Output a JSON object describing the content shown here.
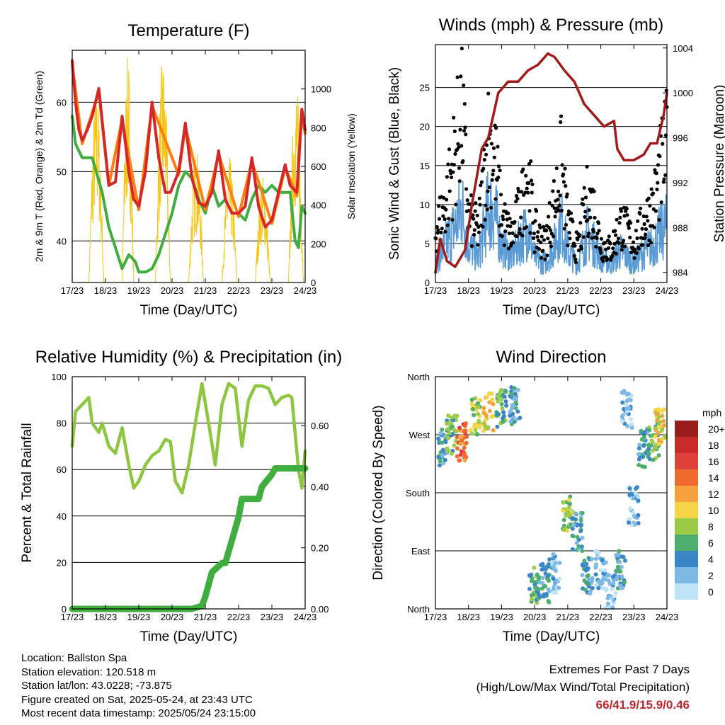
{
  "chart_data": [
    {
      "type": "line",
      "title": "Temperature (F)",
      "xlabel": "Time (Day/UTC)",
      "ylabel": "2m & 9m T (Red, Orange) & 2m Td (Green)",
      "y2label": "Solar Insolation (Yellow)",
      "x_ticks": [
        "17/23",
        "18/23",
        "19/23",
        "20/23",
        "21/23",
        "22/23",
        "23/23",
        "24/23"
      ],
      "y_ticks": [
        40,
        50,
        60
      ],
      "y2_ticks": [
        0,
        200,
        400,
        600,
        800,
        1000
      ],
      "ylim": [
        34,
        67.5
      ],
      "y2lim": [
        0,
        1200
      ],
      "grid": "horizontal",
      "x_unit": "days since 17/23",
      "series": [
        {
          "name": "2m T",
          "color": "#d62728",
          "x": [
            0.0,
            0.1,
            0.2,
            0.3,
            0.45,
            0.6,
            0.8,
            0.95,
            1.1,
            1.3,
            1.5,
            1.7,
            1.85,
            2.0,
            2.2,
            2.4,
            2.6,
            2.8,
            2.95,
            3.2,
            3.4,
            3.6,
            3.8,
            4.0,
            4.2,
            4.4,
            4.6,
            4.8,
            5.0,
            5.2,
            5.4,
            5.6,
            5.8,
            6.0,
            6.2,
            6.4,
            6.55,
            6.75,
            6.9,
            7.0
          ],
          "values": [
            66,
            60,
            56,
            54.5,
            56,
            58,
            62,
            55,
            48,
            48.5,
            58,
            50,
            46,
            45,
            50,
            60,
            52,
            47,
            47,
            50,
            57,
            49,
            45.5,
            45,
            47,
            53,
            46,
            44,
            44,
            45,
            52,
            45,
            42,
            43,
            47,
            51,
            48,
            47,
            59,
            56
          ]
        },
        {
          "name": "9m T",
          "color": "#ff7f0e",
          "x": [
            0.0,
            0.3,
            0.8,
            1.1,
            1.5,
            2.0,
            2.4,
            3.2,
            3.4,
            4.0,
            4.4,
            5.0,
            5.4,
            6.0,
            6.4,
            6.75,
            6.9,
            7.0
          ],
          "values": [
            65.5,
            54,
            61.5,
            48,
            57.5,
            44.5,
            59.5,
            49.5,
            56.5,
            44.5,
            52.5,
            43.5,
            51.5,
            42.5,
            50.5,
            46.5,
            58.5,
            55.5
          ]
        },
        {
          "name": "2m Td",
          "color": "#3fae3f",
          "x": [
            0.0,
            0.1,
            0.3,
            0.6,
            0.9,
            1.1,
            1.3,
            1.5,
            1.7,
            1.9,
            2.0,
            2.2,
            2.4,
            2.6,
            2.8,
            3.0,
            3.2,
            3.4,
            3.6,
            3.8,
            4.0,
            4.2,
            4.4,
            4.6,
            4.8,
            5.0,
            5.2,
            5.4,
            5.6,
            5.8,
            6.0,
            6.2,
            6.4,
            6.55,
            6.7,
            6.8,
            6.9,
            7.0
          ],
          "values": [
            58,
            54,
            52,
            52,
            47,
            42,
            39,
            36,
            38,
            37,
            35.5,
            35.5,
            36,
            38,
            41,
            44,
            48,
            50,
            49,
            46,
            44,
            48,
            45,
            46,
            44,
            44,
            43,
            46,
            48,
            47,
            48,
            47,
            47,
            47,
            40,
            39,
            45,
            44
          ]
        },
        {
          "name": "Solar Insolation",
          "axis": "y2",
          "color": "#f5c518",
          "x": [
            0.5,
            0.8,
            0.95,
            1.5,
            1.7,
            1.85,
            2.5,
            2.8,
            2.95,
            3.5,
            3.8,
            3.95,
            4.5,
            4.8,
            4.95,
            5.5,
            5.8,
            5.95,
            6.5,
            6.75,
            6.95
          ],
          "values": [
            0,
            1020,
            0,
            0,
            1180,
            0,
            0,
            1180,
            0,
            0,
            700,
            0,
            0,
            650,
            0,
            0,
            560,
            0,
            0,
            1050,
            0
          ]
        }
      ]
    },
    {
      "type": "scatter",
      "title": "Winds (mph) & Pressure (mb)",
      "xlabel": "Time (Day/UTC)",
      "ylabel": "Sonic Wind & Gust (Blue, Black)",
      "y2label": "Station Pressure (Maroon)",
      "x_ticks": [
        "17/23",
        "18/23",
        "19/23",
        "20/23",
        "21/23",
        "22/23",
        "23/23",
        "24/23"
      ],
      "y_ticks": [
        0,
        5,
        10,
        15,
        20,
        25
      ],
      "y2_ticks": [
        984,
        988,
        992,
        996,
        1000,
        1004
      ],
      "ylim": [
        0,
        30.5
      ],
      "y2lim": [
        983.1,
        1004.3
      ],
      "grid": "horizontal",
      "x_unit": "days since 17/23",
      "series": [
        {
          "name": "Sonic Wind",
          "color": "#5b9bd5",
          "x": [
            0.0,
            0.3,
            0.6,
            0.8,
            1.0,
            1.3,
            1.6,
            1.8,
            2.0,
            2.3,
            2.6,
            2.8,
            3.0,
            3.3,
            3.6,
            3.8,
            4.0,
            4.3,
            4.6,
            4.8,
            5.0,
            5.3,
            5.6,
            5.8,
            6.0,
            6.3,
            6.6,
            6.8,
            7.0
          ],
          "values": [
            3,
            6,
            9,
            12,
            6,
            4,
            12,
            11,
            6,
            4,
            7,
            9,
            4,
            3,
            6,
            10,
            5,
            3,
            8,
            6,
            4,
            3,
            5,
            4,
            3,
            5,
            6,
            8,
            9
          ]
        },
        {
          "name": "Gust",
          "color": "#000000",
          "x": [
            0.0,
            0.3,
            0.6,
            0.8,
            1.0,
            1.3,
            1.6,
            1.8,
            2.0,
            2.3,
            2.6,
            2.8,
            3.0,
            3.3,
            3.6,
            3.8,
            4.0,
            4.3,
            4.6,
            4.8,
            5.0,
            5.3,
            5.6,
            5.8,
            6.0,
            6.3,
            6.6,
            6.8,
            7.0
          ],
          "values": [
            8,
            12,
            20,
            27,
            10,
            8,
            22,
            19,
            10,
            7,
            12,
            17,
            8,
            6,
            12,
            18,
            9,
            5,
            13,
            11,
            6,
            5,
            9,
            8,
            6,
            9,
            12,
            17,
            21
          ]
        },
        {
          "name": "Station Pressure",
          "axis": "y2",
          "color": "#a31a1a",
          "x": [
            0.0,
            0.15,
            0.35,
            0.6,
            0.9,
            1.1,
            1.4,
            1.6,
            1.9,
            2.2,
            2.5,
            2.8,
            3.1,
            3.4,
            3.6,
            3.9,
            4.2,
            4.5,
            4.8,
            5.1,
            5.4,
            5.5,
            5.7,
            6.0,
            6.3,
            6.5,
            6.7,
            6.9,
            7.0
          ],
          "values": [
            984,
            987,
            985,
            984.5,
            986,
            990,
            995,
            996,
            1000,
            1001,
            1001,
            1002,
            1002.5,
            1003.5,
            1003.2,
            1002,
            1001,
            999,
            998,
            997,
            997.5,
            995,
            994,
            994,
            994.5,
            995.5,
            995.5,
            998,
            1000
          ]
        }
      ]
    },
    {
      "type": "line",
      "title": "Relative Humidity (%) & Precipitation (in)",
      "xlabel": "Time (Day/UTC)",
      "ylabel": "Percent & Total Rainfall",
      "x_ticks": [
        "17/23",
        "18/23",
        "19/23",
        "20/23",
        "21/23",
        "22/23",
        "23/23",
        "24/23"
      ],
      "y_ticks": [
        0,
        20,
        40,
        60,
        80,
        100
      ],
      "y2_ticks": [
        "0.00",
        "0.20",
        "0.40",
        "0.60"
      ],
      "ylim": [
        0,
        100
      ],
      "y2lim": [
        0,
        0.76
      ],
      "grid": "horizontal",
      "x_unit": "days since 17/23",
      "series": [
        {
          "name": "Relative Humidity",
          "color": "#8dc63f",
          "x": [
            0.0,
            0.1,
            0.3,
            0.5,
            0.6,
            0.8,
            0.9,
            1.1,
            1.3,
            1.5,
            1.7,
            1.85,
            2.0,
            2.2,
            2.4,
            2.6,
            2.8,
            2.95,
            3.1,
            3.3,
            3.5,
            3.7,
            3.9,
            4.1,
            4.3,
            4.5,
            4.7,
            4.9,
            5.1,
            5.3,
            5.5,
            5.7,
            5.9,
            6.1,
            6.3,
            6.5,
            6.6,
            6.8,
            6.9,
            7.0
          ],
          "values": [
            70,
            85,
            88,
            91,
            80,
            76,
            80,
            70,
            67,
            78,
            62,
            52,
            55,
            62,
            66,
            68,
            73,
            72,
            55,
            50,
            62,
            80,
            97,
            80,
            62,
            88,
            97,
            95,
            70,
            90,
            96,
            96,
            95,
            88,
            91,
            92,
            91,
            60,
            52,
            68
          ]
        },
        {
          "name": "Total Precipitation",
          "axis": "y2",
          "color": "#3fae3f",
          "x": [
            0.0,
            3.6,
            3.9,
            4.0,
            4.2,
            4.5,
            4.6,
            5.0,
            5.1,
            5.6,
            5.7,
            6.0,
            6.1,
            7.0
          ],
          "values": [
            0.0,
            0.0,
            0.01,
            0.04,
            0.12,
            0.15,
            0.15,
            0.3,
            0.36,
            0.36,
            0.4,
            0.44,
            0.46,
            0.46
          ]
        }
      ]
    },
    {
      "type": "scatter",
      "title": "Wind Direction",
      "xlabel": "Time (Day/UTC)",
      "ylabel": "Direction (Colored By Speed)",
      "x_ticks": [
        "17/23",
        "18/23",
        "19/23",
        "20/23",
        "21/23",
        "22/23",
        "23/23",
        "24/23"
      ],
      "y_ticks": [
        "North",
        "East",
        "South",
        "West",
        "North"
      ],
      "ylim": [
        0,
        360
      ],
      "grid": "horizontal",
      "x_unit": "days since 17/23",
      "colorbar": {
        "unit": "mph",
        "labels": [
          "20+",
          "18",
          "16",
          "14",
          "12",
          "10",
          "8",
          "6",
          "4",
          "2",
          "0"
        ],
        "colors": [
          "#9b1c1c",
          "#c92a2a",
          "#e0413b",
          "#f06a2d",
          "#f7a13e",
          "#f5d545",
          "#9ccb48",
          "#4caf6e",
          "#3a86c6",
          "#7db9e4",
          "#bfe3f7"
        ]
      },
      "clusters": [
        {
          "x": 0.2,
          "y": 250,
          "speed": 4
        },
        {
          "x": 0.5,
          "y": 270,
          "speed": 6
        },
        {
          "x": 0.8,
          "y": 260,
          "speed": 14
        },
        {
          "x": 1.2,
          "y": 300,
          "speed": 8
        },
        {
          "x": 1.6,
          "y": 305,
          "speed": 10
        },
        {
          "x": 2.0,
          "y": 310,
          "speed": 6
        },
        {
          "x": 2.4,
          "y": 315,
          "speed": 4
        },
        {
          "x": 3.0,
          "y": 35,
          "speed": 6
        },
        {
          "x": 3.3,
          "y": 40,
          "speed": 4
        },
        {
          "x": 3.6,
          "y": 55,
          "speed": 2
        },
        {
          "x": 4.0,
          "y": 150,
          "speed": 8
        },
        {
          "x": 4.3,
          "y": 120,
          "speed": 4
        },
        {
          "x": 4.6,
          "y": 50,
          "speed": 4
        },
        {
          "x": 5.0,
          "y": 60,
          "speed": 2
        },
        {
          "x": 5.3,
          "y": 25,
          "speed": 2
        },
        {
          "x": 5.6,
          "y": 60,
          "speed": 4
        },
        {
          "x": 5.8,
          "y": 310,
          "speed": 2
        },
        {
          "x": 6.0,
          "y": 160,
          "speed": 2
        },
        {
          "x": 6.3,
          "y": 250,
          "speed": 4
        },
        {
          "x": 6.6,
          "y": 260,
          "speed": 6
        },
        {
          "x": 6.8,
          "y": 280,
          "speed": 10
        }
      ]
    }
  ],
  "info": {
    "location": "Location: Ballston Spa",
    "elevation": "Station elevation: 120.518 m",
    "latlon": "Station lat/lon: 43.0228; -73.875",
    "created": "Figure created on Sat, 2025-05-24, at 23:43 UTC",
    "recent": "Most recent data timestamp: 2025/05/24 23:15:00"
  },
  "extremes": {
    "line1": "Extremes For Past 7 Days",
    "line2": "(High/Low/Max Wind/Total Precipitation)",
    "values": "66/41.9/15.9/0.46"
  }
}
